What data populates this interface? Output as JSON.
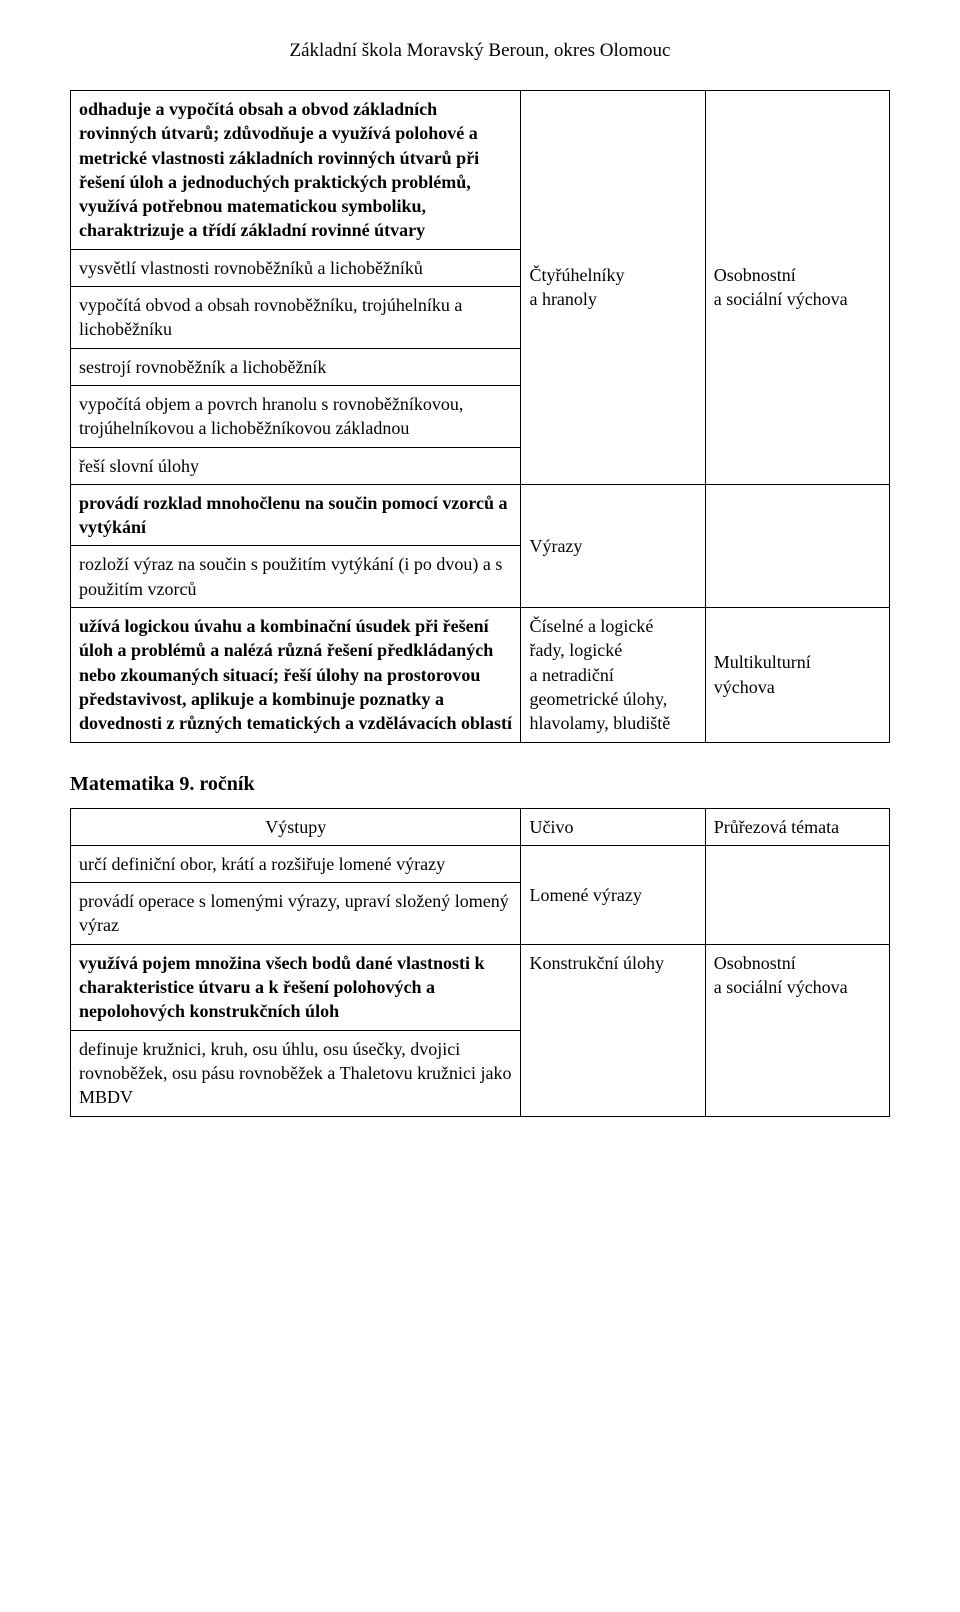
{
  "header": "Základní škola Moravský Beroun, okres Olomouc",
  "table1": {
    "r1c1": "odhaduje a vypočítá obsah a obvod základních rovinných útvarů; zdůvodňuje a využívá polohové a metrické vlastnosti základních rovinných útvarů při řešení úloh a jednoduchých praktických problémů, využívá potřebnou matematickou symboliku, charaktrizuje a třídí základní rovinné útvary",
    "r2c1": "vysvětlí vlastnosti rovnoběžníků a lichoběžníků",
    "r3c1": "vypočítá obvod a obsah rovnoběžníku, trojúhelníku a lichoběžníku",
    "r4c1": "sestrojí rovnoběžník a lichoběžník",
    "r5c1": "vypočítá objem a povrch hranolu s rovnoběžníkovou, trojúhelníkovou a lichoběžníkovou základnou",
    "r6c1": "řeší slovní úlohy",
    "r1c2_l1": "Čtyřúhelníky",
    "r1c2_l2": "a hranoly",
    "r1c3_l1": "Osobnostní",
    "r1c3_l2": "a sociální výchova",
    "r7c1": "provádí rozklad mnohočlenu na součin pomocí vzorců a vytýkání",
    "r7c2": "Výrazy",
    "r8c1": "rozloží výraz na součin s použitím vytýkání (i po dvou) a s použitím vzorců",
    "r9c1": "užívá logickou úvahu a kombinační úsudek při řešení úloh a problémů a nalézá různá řešení předkládaných nebo zkoumaných situací; řeší úlohy na prostorovou představivost, aplikuje a kombinuje poznatky a dovednosti z různých tematických a vzdělávacích oblastí",
    "r9c2_l1": "Číselné a logické",
    "r9c2_l2": "řady, logické",
    "r9c2_l3": "a netradiční",
    "r9c2_l4": "geometrické úlohy,",
    "r9c2_l5": "hlavolamy, bludiště",
    "r9c3_l1": "Multikulturní",
    "r9c3_l2": "výchova"
  },
  "section2_title": "Matematika 9. ročník",
  "table2": {
    "h1": "Výstupy",
    "h2": "Učivo",
    "h3": "Průřezová témata",
    "r1c1": "určí definiční obor, krátí a rozšiřuje lomené výrazy",
    "r2c1": "provádí operace s lomenými výrazy, upraví složený lomený výraz",
    "r1c2": "Lomené výrazy",
    "r3c1": "využívá pojem množina všech bodů dané vlastnosti k charakteristice útvaru a k řešení polohových a nepolohových konstrukčních úloh",
    "r4c1": "definuje kružnici, kruh, osu úhlu, osu úsečky, dvojici rovnoběžek, osu pásu rovnoběžek a Thaletovu kružnici jako MBDV",
    "r3c2": "Konstrukční úlohy",
    "r3c3_l1": "Osobnostní",
    "r3c3_l2": "a sociální výchova"
  }
}
